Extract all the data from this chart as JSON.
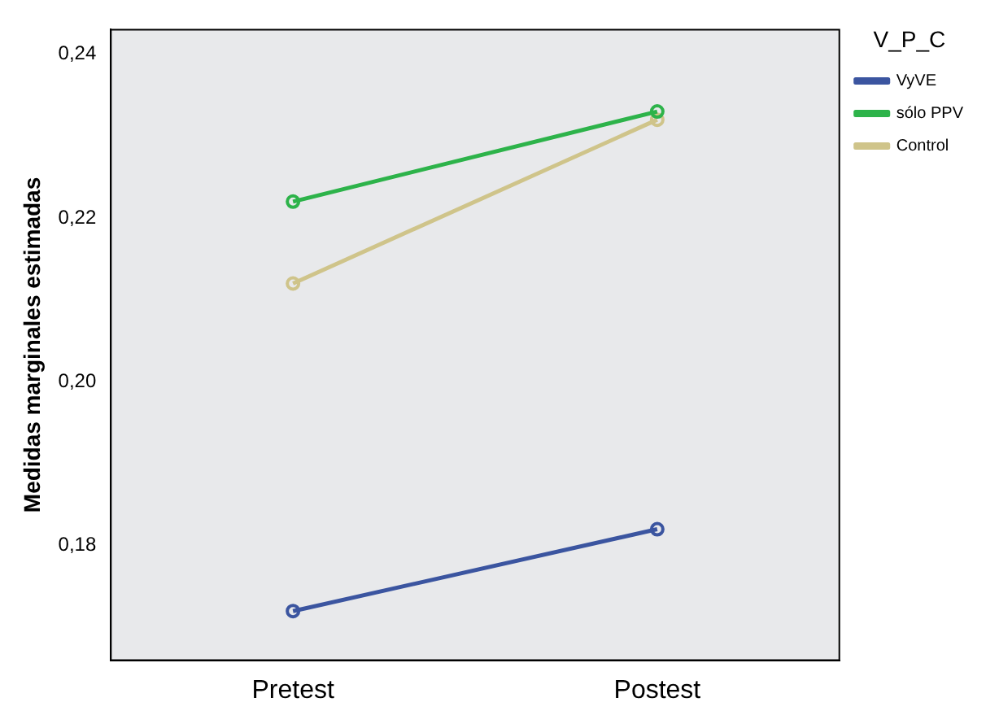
{
  "chart_data": {
    "type": "line",
    "ylabel": "Medidas marginales estimadas",
    "legend_title": "V_P_C",
    "categories": [
      "Pretest",
      "Postest"
    ],
    "series": [
      {
        "name": "VyVE",
        "color": "#3b55a0",
        "values": [
          0.172,
          0.182
        ]
      },
      {
        "name": "sólo PPV",
        "color": "#2db34a",
        "values": [
          0.222,
          0.233
        ]
      },
      {
        "name": "Control",
        "color": "#cfc48a",
        "values": [
          0.212,
          0.232
        ]
      }
    ],
    "ylim": [
      0.166,
      0.243
    ],
    "yticks": [
      {
        "value": 0.18,
        "label": "0,18"
      },
      {
        "value": 0.2,
        "label": "0,20"
      },
      {
        "value": 0.22,
        "label": "0,22"
      },
      {
        "value": 0.24,
        "label": "0,24"
      }
    ],
    "grid": false,
    "legend": "right",
    "marker": "circle",
    "line_style": "solid"
  }
}
